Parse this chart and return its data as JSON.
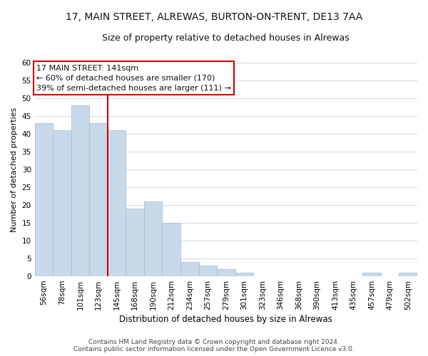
{
  "title": "17, MAIN STREET, ALREWAS, BURTON-ON-TRENT, DE13 7AA",
  "subtitle": "Size of property relative to detached houses in Alrewas",
  "xlabel": "Distribution of detached houses by size in Alrewas",
  "ylabel": "Number of detached properties",
  "categories": [
    "56sqm",
    "78sqm",
    "101sqm",
    "123sqm",
    "145sqm",
    "168sqm",
    "190sqm",
    "212sqm",
    "234sqm",
    "257sqm",
    "279sqm",
    "301sqm",
    "323sqm",
    "346sqm",
    "368sqm",
    "390sqm",
    "413sqm",
    "435sqm",
    "457sqm",
    "479sqm",
    "502sqm"
  ],
  "values": [
    43,
    41,
    48,
    43,
    41,
    19,
    21,
    15,
    4,
    3,
    2,
    1,
    0,
    0,
    0,
    0,
    0,
    0,
    1,
    0,
    1
  ],
  "bar_color": "#c8daea",
  "bar_edge_color": "#a8c0d8",
  "vline_color": "#cc0000",
  "annotation_line1": "17 MAIN STREET: 141sqm",
  "annotation_line2": "← 60% of detached houses are smaller (170)",
  "annotation_line3": "39% of semi-detached houses are larger (111) →",
  "annotation_box_color": "#ffffff",
  "annotation_box_edge_color": "#cc0000",
  "ylim": [
    0,
    60
  ],
  "yticks": [
    0,
    5,
    10,
    15,
    20,
    25,
    30,
    35,
    40,
    45,
    50,
    55,
    60
  ],
  "footer_line1": "Contains HM Land Registry data © Crown copyright and database right 2024.",
  "footer_line2": "Contains public sector information licensed under the Open Government Licence v3.0.",
  "background_color": "#ffffff",
  "plot_bg_color": "#ffffff",
  "grid_color": "#d0dce8",
  "title_fontsize": 10,
  "subtitle_fontsize": 9,
  "axis_label_fontsize": 8,
  "tick_fontsize": 7.5,
  "annotation_fontsize": 8,
  "footer_fontsize": 6.5
}
